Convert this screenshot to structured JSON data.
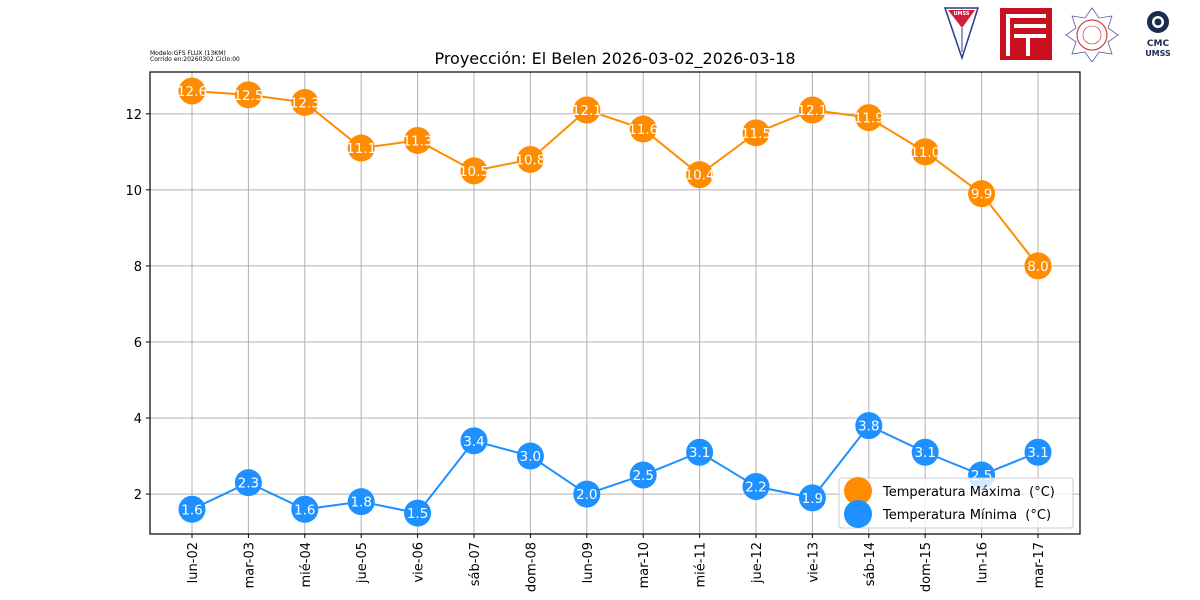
{
  "meta": {
    "model": "Modelo:GFS FLUX (13KM)",
    "run": "Corrido en:20260302 Ciclo:00"
  },
  "logos": {
    "umss": "UMSS",
    "cmc_line1": "CMC",
    "cmc_line2": "UMSS"
  },
  "colors": {
    "max": "#ff8c00",
    "min": "#1e90ff",
    "grid": "#b0b0b0"
  },
  "chart_data": {
    "type": "line",
    "title": "Proyección: El Belen 2026-03-02_2026-03-18",
    "xlabel": "",
    "ylabel": "",
    "ylim": [
      0.95,
      13.1
    ],
    "yticks": [
      2,
      4,
      6,
      8,
      10,
      12
    ],
    "grid": true,
    "legend_position": "lower-right",
    "categories": [
      "lun-02",
      "mar-03",
      "mié-04",
      "jue-05",
      "vie-06",
      "sáb-07",
      "dom-08",
      "lun-09",
      "mar-10",
      "mié-11",
      "jue-12",
      "vie-13",
      "sáb-14",
      "dom-15",
      "lun-16",
      "mar-17"
    ],
    "series": [
      {
        "name": "Temperatura Máxima  (°C)",
        "color": "#ff8c00",
        "values": [
          12.6,
          12.5,
          12.3,
          11.1,
          11.3,
          10.5,
          10.8,
          12.1,
          11.6,
          10.4,
          11.5,
          12.1,
          11.9,
          11.0,
          9.9,
          8.0
        ],
        "labels": [
          "12.6",
          "12.5",
          "12.3",
          "11.1",
          "11.3",
          "10.5",
          "10.8",
          "12.1",
          "11.6",
          "10.4",
          "11.5",
          "12.1",
          "11.9",
          "11.0",
          "9.9",
          "8.0"
        ]
      },
      {
        "name": "Temperatura Mínima  (°C)",
        "color": "#1e90ff",
        "values": [
          1.6,
          2.3,
          1.6,
          1.8,
          1.5,
          3.4,
          3.0,
          2.0,
          2.5,
          3.1,
          2.2,
          1.9,
          3.8,
          3.1,
          2.5,
          3.1
        ],
        "labels": [
          "1.6",
          "2.3",
          "1.6",
          "1.8",
          "1.5",
          "3.4",
          "3.0",
          "2.0",
          "2.5",
          "3.1",
          "2.2",
          "1.9",
          "3.8",
          "3.1",
          "2.5",
          "3.1"
        ]
      }
    ]
  }
}
